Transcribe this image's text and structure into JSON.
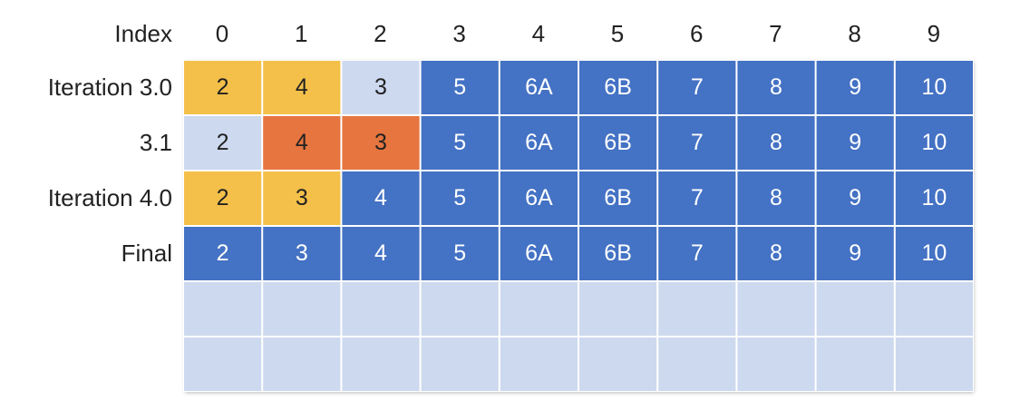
{
  "header": {
    "label": "Index",
    "indices": [
      "0",
      "1",
      "2",
      "3",
      "4",
      "5",
      "6",
      "7",
      "8",
      "9"
    ]
  },
  "rows": [
    {
      "label": "Iteration 3.0",
      "cells": [
        {
          "v": "2",
          "c": "yellow"
        },
        {
          "v": "4",
          "c": "yellow"
        },
        {
          "v": "3",
          "c": "light"
        },
        {
          "v": "5",
          "c": "dark"
        },
        {
          "v": "6A",
          "c": "dark"
        },
        {
          "v": "6B",
          "c": "dark"
        },
        {
          "v": "7",
          "c": "dark"
        },
        {
          "v": "8",
          "c": "dark"
        },
        {
          "v": "9",
          "c": "dark"
        },
        {
          "v": "10",
          "c": "dark"
        }
      ]
    },
    {
      "label": "3.1",
      "cells": [
        {
          "v": "2",
          "c": "light"
        },
        {
          "v": "4",
          "c": "orange"
        },
        {
          "v": "3",
          "c": "orange"
        },
        {
          "v": "5",
          "c": "dark"
        },
        {
          "v": "6A",
          "c": "dark"
        },
        {
          "v": "6B",
          "c": "dark"
        },
        {
          "v": "7",
          "c": "dark"
        },
        {
          "v": "8",
          "c": "dark"
        },
        {
          "v": "9",
          "c": "dark"
        },
        {
          "v": "10",
          "c": "dark"
        }
      ]
    },
    {
      "label": "Iteration 4.0",
      "cells": [
        {
          "v": "2",
          "c": "yellow"
        },
        {
          "v": "3",
          "c": "yellow"
        },
        {
          "v": "4",
          "c": "dark"
        },
        {
          "v": "5",
          "c": "dark"
        },
        {
          "v": "6A",
          "c": "dark"
        },
        {
          "v": "6B",
          "c": "dark"
        },
        {
          "v": "7",
          "c": "dark"
        },
        {
          "v": "8",
          "c": "dark"
        },
        {
          "v": "9",
          "c": "dark"
        },
        {
          "v": "10",
          "c": "dark"
        }
      ]
    },
    {
      "label": "Final",
      "cells": [
        {
          "v": "2",
          "c": "dark"
        },
        {
          "v": "3",
          "c": "dark"
        },
        {
          "v": "4",
          "c": "dark"
        },
        {
          "v": "5",
          "c": "dark"
        },
        {
          "v": "6A",
          "c": "dark"
        },
        {
          "v": "6B",
          "c": "dark"
        },
        {
          "v": "7",
          "c": "dark"
        },
        {
          "v": "8",
          "c": "dark"
        },
        {
          "v": "9",
          "c": "dark"
        },
        {
          "v": "10",
          "c": "dark"
        }
      ]
    },
    {
      "label": "",
      "cells": [
        {
          "v": "",
          "c": "light"
        },
        {
          "v": "",
          "c": "light"
        },
        {
          "v": "",
          "c": "light"
        },
        {
          "v": "",
          "c": "light"
        },
        {
          "v": "",
          "c": "light"
        },
        {
          "v": "",
          "c": "light"
        },
        {
          "v": "",
          "c": "light"
        },
        {
          "v": "",
          "c": "light"
        },
        {
          "v": "",
          "c": "light"
        },
        {
          "v": "",
          "c": "light"
        }
      ]
    },
    {
      "label": "",
      "cells": [
        {
          "v": "",
          "c": "light"
        },
        {
          "v": "",
          "c": "light"
        },
        {
          "v": "",
          "c": "light"
        },
        {
          "v": "",
          "c": "light"
        },
        {
          "v": "",
          "c": "light"
        },
        {
          "v": "",
          "c": "light"
        },
        {
          "v": "",
          "c": "light"
        },
        {
          "v": "",
          "c": "light"
        },
        {
          "v": "",
          "c": "light"
        },
        {
          "v": "",
          "c": "light"
        }
      ]
    }
  ],
  "colors": {
    "dark": "#4472c4",
    "light": "#cdd9ef",
    "yellow": "#f4c04a",
    "orange": "#e6753f",
    "grid": "#ffffff"
  }
}
